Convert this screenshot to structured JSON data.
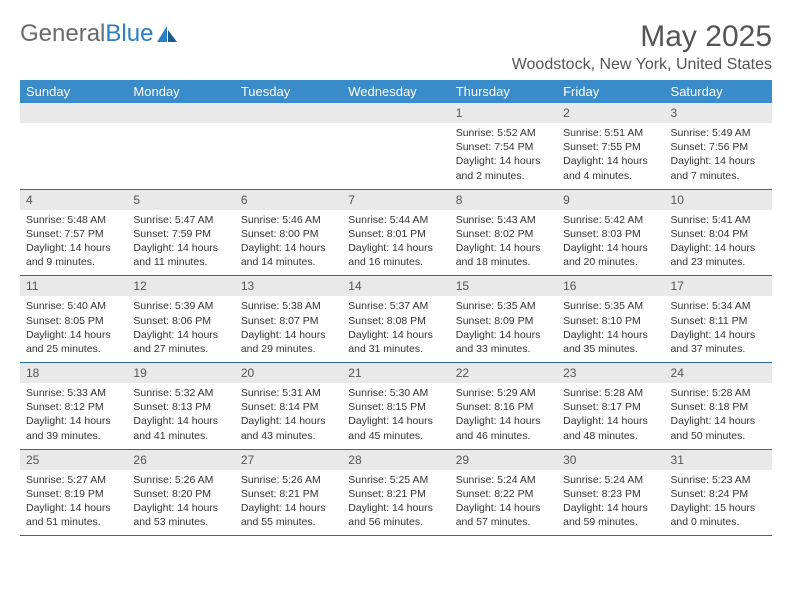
{
  "brand": {
    "part1": "General",
    "part2": "Blue"
  },
  "title": "May 2025",
  "location": "Woodstock, New York, United States",
  "dayNames": [
    "Sunday",
    "Monday",
    "Tuesday",
    "Wednesday",
    "Thursday",
    "Friday",
    "Saturday"
  ],
  "colors": {
    "headerBg": "#3a8bc9",
    "rowBorder": "#2c6a9e",
    "dayNumBg": "#e9e9e9",
    "textMuted": "#555"
  },
  "weeks": [
    [
      null,
      null,
      null,
      null,
      {
        "num": "1",
        "sunrise": "Sunrise: 5:52 AM",
        "sunset": "Sunset: 7:54 PM",
        "daylight": "Daylight: 14 hours and 2 minutes."
      },
      {
        "num": "2",
        "sunrise": "Sunrise: 5:51 AM",
        "sunset": "Sunset: 7:55 PM",
        "daylight": "Daylight: 14 hours and 4 minutes."
      },
      {
        "num": "3",
        "sunrise": "Sunrise: 5:49 AM",
        "sunset": "Sunset: 7:56 PM",
        "daylight": "Daylight: 14 hours and 7 minutes."
      }
    ],
    [
      {
        "num": "4",
        "sunrise": "Sunrise: 5:48 AM",
        "sunset": "Sunset: 7:57 PM",
        "daylight": "Daylight: 14 hours and 9 minutes."
      },
      {
        "num": "5",
        "sunrise": "Sunrise: 5:47 AM",
        "sunset": "Sunset: 7:59 PM",
        "daylight": "Daylight: 14 hours and 11 minutes."
      },
      {
        "num": "6",
        "sunrise": "Sunrise: 5:46 AM",
        "sunset": "Sunset: 8:00 PM",
        "daylight": "Daylight: 14 hours and 14 minutes."
      },
      {
        "num": "7",
        "sunrise": "Sunrise: 5:44 AM",
        "sunset": "Sunset: 8:01 PM",
        "daylight": "Daylight: 14 hours and 16 minutes."
      },
      {
        "num": "8",
        "sunrise": "Sunrise: 5:43 AM",
        "sunset": "Sunset: 8:02 PM",
        "daylight": "Daylight: 14 hours and 18 minutes."
      },
      {
        "num": "9",
        "sunrise": "Sunrise: 5:42 AM",
        "sunset": "Sunset: 8:03 PM",
        "daylight": "Daylight: 14 hours and 20 minutes."
      },
      {
        "num": "10",
        "sunrise": "Sunrise: 5:41 AM",
        "sunset": "Sunset: 8:04 PM",
        "daylight": "Daylight: 14 hours and 23 minutes."
      }
    ],
    [
      {
        "num": "11",
        "sunrise": "Sunrise: 5:40 AM",
        "sunset": "Sunset: 8:05 PM",
        "daylight": "Daylight: 14 hours and 25 minutes."
      },
      {
        "num": "12",
        "sunrise": "Sunrise: 5:39 AM",
        "sunset": "Sunset: 8:06 PM",
        "daylight": "Daylight: 14 hours and 27 minutes."
      },
      {
        "num": "13",
        "sunrise": "Sunrise: 5:38 AM",
        "sunset": "Sunset: 8:07 PM",
        "daylight": "Daylight: 14 hours and 29 minutes."
      },
      {
        "num": "14",
        "sunrise": "Sunrise: 5:37 AM",
        "sunset": "Sunset: 8:08 PM",
        "daylight": "Daylight: 14 hours and 31 minutes."
      },
      {
        "num": "15",
        "sunrise": "Sunrise: 5:35 AM",
        "sunset": "Sunset: 8:09 PM",
        "daylight": "Daylight: 14 hours and 33 minutes."
      },
      {
        "num": "16",
        "sunrise": "Sunrise: 5:35 AM",
        "sunset": "Sunset: 8:10 PM",
        "daylight": "Daylight: 14 hours and 35 minutes."
      },
      {
        "num": "17",
        "sunrise": "Sunrise: 5:34 AM",
        "sunset": "Sunset: 8:11 PM",
        "daylight": "Daylight: 14 hours and 37 minutes."
      }
    ],
    [
      {
        "num": "18",
        "sunrise": "Sunrise: 5:33 AM",
        "sunset": "Sunset: 8:12 PM",
        "daylight": "Daylight: 14 hours and 39 minutes."
      },
      {
        "num": "19",
        "sunrise": "Sunrise: 5:32 AM",
        "sunset": "Sunset: 8:13 PM",
        "daylight": "Daylight: 14 hours and 41 minutes."
      },
      {
        "num": "20",
        "sunrise": "Sunrise: 5:31 AM",
        "sunset": "Sunset: 8:14 PM",
        "daylight": "Daylight: 14 hours and 43 minutes."
      },
      {
        "num": "21",
        "sunrise": "Sunrise: 5:30 AM",
        "sunset": "Sunset: 8:15 PM",
        "daylight": "Daylight: 14 hours and 45 minutes."
      },
      {
        "num": "22",
        "sunrise": "Sunrise: 5:29 AM",
        "sunset": "Sunset: 8:16 PM",
        "daylight": "Daylight: 14 hours and 46 minutes."
      },
      {
        "num": "23",
        "sunrise": "Sunrise: 5:28 AM",
        "sunset": "Sunset: 8:17 PM",
        "daylight": "Daylight: 14 hours and 48 minutes."
      },
      {
        "num": "24",
        "sunrise": "Sunrise: 5:28 AM",
        "sunset": "Sunset: 8:18 PM",
        "daylight": "Daylight: 14 hours and 50 minutes."
      }
    ],
    [
      {
        "num": "25",
        "sunrise": "Sunrise: 5:27 AM",
        "sunset": "Sunset: 8:19 PM",
        "daylight": "Daylight: 14 hours and 51 minutes."
      },
      {
        "num": "26",
        "sunrise": "Sunrise: 5:26 AM",
        "sunset": "Sunset: 8:20 PM",
        "daylight": "Daylight: 14 hours and 53 minutes."
      },
      {
        "num": "27",
        "sunrise": "Sunrise: 5:26 AM",
        "sunset": "Sunset: 8:21 PM",
        "daylight": "Daylight: 14 hours and 55 minutes."
      },
      {
        "num": "28",
        "sunrise": "Sunrise: 5:25 AM",
        "sunset": "Sunset: 8:21 PM",
        "daylight": "Daylight: 14 hours and 56 minutes."
      },
      {
        "num": "29",
        "sunrise": "Sunrise: 5:24 AM",
        "sunset": "Sunset: 8:22 PM",
        "daylight": "Daylight: 14 hours and 57 minutes."
      },
      {
        "num": "30",
        "sunrise": "Sunrise: 5:24 AM",
        "sunset": "Sunset: 8:23 PM",
        "daylight": "Daylight: 14 hours and 59 minutes."
      },
      {
        "num": "31",
        "sunrise": "Sunrise: 5:23 AM",
        "sunset": "Sunset: 8:24 PM",
        "daylight": "Daylight: 15 hours and 0 minutes."
      }
    ]
  ]
}
